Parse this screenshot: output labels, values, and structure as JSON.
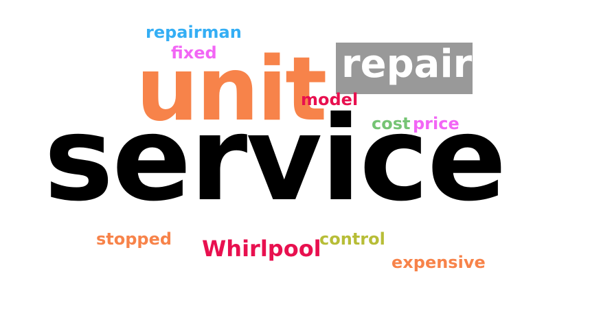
{
  "word_cloud": {
    "words": {
      "service": {
        "text": "service",
        "color": "#000000"
      },
      "unit": {
        "text": "unit",
        "color": "#f7834a"
      },
      "repair": {
        "text": "repair",
        "color": "#ffffff",
        "background": "#999999"
      },
      "repairman": {
        "text": "repairman",
        "color": "#34aef4"
      },
      "fixed": {
        "text": "fixed",
        "color": "#f266f5"
      },
      "model": {
        "text": "model",
        "color": "#e8104f"
      },
      "cost": {
        "text": "cost",
        "color": "#75c474"
      },
      "price": {
        "text": "price",
        "color": "#f266f5"
      },
      "stopped": {
        "text": "stopped",
        "color": "#f7834a"
      },
      "whirlpool": {
        "text": "Whirlpool",
        "color": "#e8104f"
      },
      "control": {
        "text": "control",
        "color": "#b7bd37"
      },
      "expensive": {
        "text": "expensive",
        "color": "#f7834a"
      }
    }
  }
}
